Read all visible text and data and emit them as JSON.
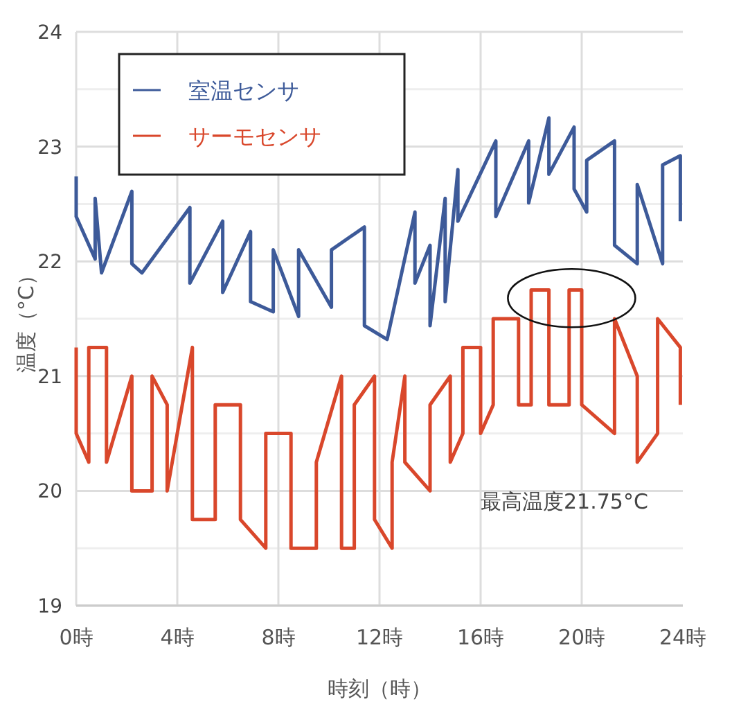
{
  "chart_data": {
    "type": "line",
    "xlabel": "時刻（時）",
    "ylabel": "温度（°C）",
    "xlim": [
      0,
      24
    ],
    "ylim": [
      19,
      24
    ],
    "xticks": [
      {
        "value": 0,
        "label": "0時"
      },
      {
        "value": 4,
        "label": "4時"
      },
      {
        "value": 8,
        "label": "8時"
      },
      {
        "value": 12,
        "label": "12時"
      },
      {
        "value": 16,
        "label": "16時"
      },
      {
        "value": 20,
        "label": "20時"
      },
      {
        "value": 24,
        "label": "24時"
      }
    ],
    "yticks": [
      19,
      {
        "value": 19.5,
        "label": null
      },
      20,
      {
        "value": 20.5,
        "label": null
      },
      21,
      {
        "value": 21.5,
        "label": null
      },
      22,
      {
        "value": 22.5,
        "label": null
      },
      23,
      {
        "value": 23.5,
        "label": null
      },
      24
    ],
    "grid": true,
    "legend": "top left",
    "annotations": [
      "最高温度21.75°C"
    ],
    "series": [
      {
        "name": "室温センサ",
        "color": "#3d5a99",
        "x": [
          0,
          0,
          0.75,
          0.75,
          1.0,
          2.2,
          2.2,
          2.6,
          4.5,
          4.5,
          5.8,
          5.8,
          6.9,
          6.9,
          7.8,
          7.8,
          8.8,
          8.8,
          10.1,
          10.1,
          11.4,
          11.4,
          12.3,
          13.4,
          13.4,
          14.0,
          14.0,
          14.6,
          14.6,
          15.1,
          15.1,
          16.6,
          16.6,
          17.9,
          17.9,
          18.7,
          18.7,
          19.7,
          19.7,
          20.2,
          20.2,
          21.3,
          21.3,
          22.2,
          22.2,
          23.2,
          23.2,
          23.9,
          23.9
        ],
        "values": [
          22.74,
          22.39,
          22.02,
          22.55,
          21.9,
          22.61,
          21.98,
          21.9,
          22.47,
          21.81,
          22.35,
          21.73,
          22.26,
          21.65,
          21.56,
          22.1,
          21.52,
          22.1,
          21.6,
          22.1,
          22.3,
          21.44,
          21.32,
          22.43,
          21.81,
          22.14,
          21.44,
          22.55,
          21.65,
          22.8,
          22.35,
          23.05,
          22.39,
          23.05,
          22.51,
          23.25,
          22.76,
          23.17,
          22.63,
          22.43,
          22.88,
          23.05,
          22.14,
          21.98,
          22.67,
          21.98,
          22.84,
          22.92,
          22.35
        ]
      },
      {
        "name": "サーモセンサ",
        "color": "#d9472b",
        "x": [
          0,
          0,
          0.5,
          0.5,
          1.2,
          1.2,
          2.2,
          2.2,
          3.0,
          3.0,
          3.6,
          3.6,
          4.6,
          4.6,
          5.5,
          5.5,
          6.5,
          6.5,
          7.5,
          7.5,
          8.5,
          8.5,
          9.5,
          9.5,
          10.5,
          10.5,
          11.0,
          11.0,
          11.8,
          11.8,
          12.5,
          12.5,
          13.0,
          13.0,
          14.0,
          14.0,
          14.8,
          14.8,
          15.3,
          15.3,
          16.0,
          16.0,
          16.5,
          16.5,
          17.5,
          17.5,
          18.0,
          18.0,
          18.7,
          18.7,
          19.5,
          19.5,
          20.0,
          20.0,
          21.3,
          21.3,
          22.2,
          22.2,
          23.0,
          23.0,
          23.9,
          23.9
        ],
        "values": [
          21.25,
          20.5,
          20.25,
          21.25,
          21.25,
          20.25,
          21.0,
          20.0,
          20.0,
          21.0,
          20.75,
          20.0,
          21.25,
          19.75,
          19.75,
          20.75,
          20.75,
          19.75,
          19.5,
          20.5,
          20.5,
          19.5,
          19.5,
          20.25,
          21.0,
          19.5,
          19.5,
          20.75,
          21.0,
          19.75,
          19.5,
          20.25,
          21.0,
          20.25,
          20.0,
          20.75,
          21.0,
          20.25,
          20.5,
          21.25,
          21.25,
          20.5,
          20.75,
          21.5,
          21.5,
          20.75,
          20.75,
          21.75,
          21.75,
          20.75,
          20.75,
          21.75,
          21.75,
          20.75,
          20.5,
          21.5,
          21.0,
          20.25,
          20.5,
          21.5,
          21.25,
          20.75
        ]
      }
    ]
  }
}
